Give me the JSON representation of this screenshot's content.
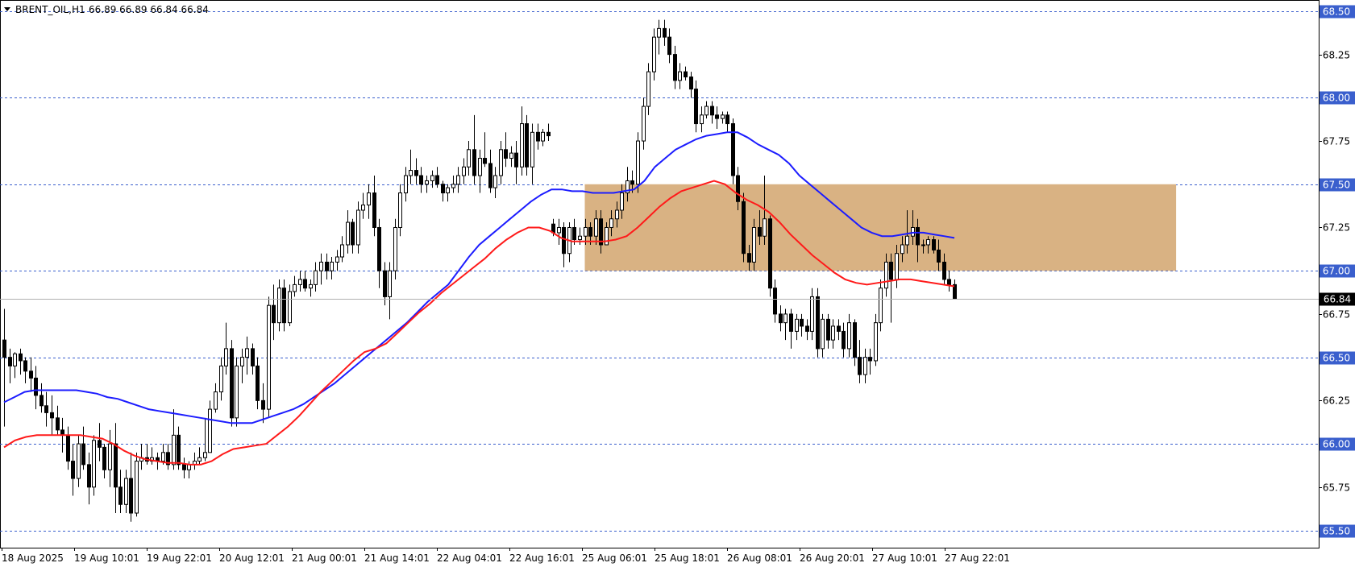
{
  "header": {
    "symbol": "BRENT_OIL,H1",
    "ohlc": "66.89 66.89 66.84 66.84"
  },
  "current_price": "66.84",
  "colors": {
    "candle": "#000000",
    "grid": "#3a5fcd",
    "zone_fill": "#d9b283",
    "ma_blue": "#1c1cff",
    "ma_red": "#ff1a1a",
    "price_label_bg": "#000000"
  },
  "chart_data": {
    "type": "candlestick",
    "ylim": [
      65.4,
      68.56
    ],
    "grid": "horizontal-dashed",
    "y_ticks": [
      "68.50",
      "68.25",
      "68.00",
      "67.75",
      "67.50",
      "67.25",
      "67.00",
      "66.75",
      "66.50",
      "66.25",
      "66.00",
      "65.75",
      "65.50"
    ],
    "x_ticks": [
      "18 Aug 2025",
      "19 Aug 10:01",
      "19 Aug 22:01",
      "20 Aug 12:01",
      "21 Aug 00:01",
      "21 Aug 14:01",
      "22 Aug 04:01",
      "22 Aug 16:01",
      "25 Aug 06:01",
      "25 Aug 18:01",
      "26 Aug 08:01",
      "26 Aug 20:01",
      "27 Aug 10:01",
      "27 Aug 22:01"
    ],
    "zone": {
      "y_low": 67.0,
      "y_high": 67.5,
      "x_start_index": 110,
      "x_end_index": 222
    },
    "candles": [
      [
        66.6,
        66.78,
        66.1,
        66.5
      ],
      [
        66.5,
        66.55,
        66.35,
        66.45
      ],
      [
        66.45,
        66.53,
        66.38,
        66.52
      ],
      [
        66.52,
        66.55,
        66.4,
        66.48
      ],
      [
        66.48,
        66.5,
        66.35,
        66.42
      ],
      [
        66.42,
        66.5,
        66.3,
        66.38
      ],
      [
        66.38,
        66.45,
        66.2,
        66.28
      ],
      [
        66.28,
        66.35,
        66.18,
        66.22
      ],
      [
        66.22,
        66.3,
        66.1,
        66.18
      ],
      [
        66.18,
        66.28,
        66.05,
        66.15
      ],
      [
        66.15,
        66.22,
        66.05,
        66.08
      ],
      [
        66.08,
        66.15,
        65.95,
        66.05
      ],
      [
        66.05,
        66.1,
        65.85,
        65.9
      ],
      [
        65.9,
        66.0,
        65.7,
        65.8
      ],
      [
        65.8,
        66.05,
        65.75,
        66.0
      ],
      [
        66.0,
        66.1,
        65.85,
        65.88
      ],
      [
        65.88,
        65.95,
        65.65,
        65.75
      ],
      [
        65.75,
        66.05,
        65.7,
        66.02
      ],
      [
        66.02,
        66.12,
        65.9,
        65.98
      ],
      [
        65.98,
        66.0,
        65.8,
        65.85
      ],
      [
        65.85,
        66.08,
        65.75,
        66.0
      ],
      [
        66.0,
        66.12,
        65.6,
        65.75
      ],
      [
        65.75,
        65.85,
        65.6,
        65.65
      ],
      [
        65.65,
        65.85,
        65.6,
        65.8
      ],
      [
        65.8,
        65.95,
        65.55,
        65.6
      ],
      [
        65.6,
        65.95,
        65.58,
        65.9
      ],
      [
        65.9,
        66.0,
        65.85,
        65.92
      ],
      [
        65.92,
        66.0,
        65.88,
        65.9
      ],
      [
        65.9,
        65.98,
        65.88,
        65.92
      ],
      [
        65.92,
        65.95,
        65.85,
        65.9
      ],
      [
        65.9,
        66.0,
        65.88,
        65.95
      ],
      [
        65.95,
        66.0,
        65.85,
        65.88
      ],
      [
        65.88,
        66.2,
        65.85,
        66.05
      ],
      [
        66.05,
        66.1,
        65.85,
        65.88
      ],
      [
        65.88,
        65.92,
        65.8,
        65.85
      ],
      [
        65.85,
        65.9,
        65.8,
        65.88
      ],
      [
        65.88,
        65.95,
        65.85,
        65.9
      ],
      [
        65.9,
        65.98,
        65.88,
        65.92
      ],
      [
        65.92,
        66.15,
        65.9,
        65.95
      ],
      [
        65.95,
        66.25,
        65.95,
        66.2
      ],
      [
        66.2,
        66.35,
        66.18,
        66.3
      ],
      [
        66.3,
        66.5,
        66.25,
        66.45
      ],
      [
        66.45,
        66.7,
        66.4,
        66.55
      ],
      [
        66.55,
        66.6,
        66.1,
        66.15
      ],
      [
        66.15,
        66.5,
        66.1,
        66.45
      ],
      [
        66.45,
        66.55,
        66.35,
        66.5
      ],
      [
        66.5,
        66.62,
        66.4,
        66.55
      ],
      [
        66.55,
        66.58,
        66.4,
        66.45
      ],
      [
        66.45,
        66.5,
        66.2,
        66.25
      ],
      [
        66.25,
        66.35,
        66.12,
        66.2
      ],
      [
        66.2,
        66.85,
        66.15,
        66.8
      ],
      [
        66.8,
        66.92,
        66.6,
        66.7
      ],
      [
        66.7,
        66.95,
        66.65,
        66.9
      ],
      [
        66.9,
        66.95,
        66.65,
        66.7
      ],
      [
        66.7,
        66.92,
        66.68,
        66.88
      ],
      [
        66.88,
        66.97,
        66.85,
        66.92
      ],
      [
        66.92,
        67.0,
        66.88,
        66.95
      ],
      [
        66.95,
        67.0,
        66.88,
        66.9
      ],
      [
        66.9,
        66.95,
        66.85,
        66.92
      ],
      [
        66.92,
        67.05,
        66.88,
        67.0
      ],
      [
        67.0,
        67.1,
        66.92,
        67.05
      ],
      [
        67.05,
        67.1,
        66.95,
        67.0
      ],
      [
        67.0,
        67.08,
        66.95,
        67.05
      ],
      [
        67.05,
        67.12,
        67.0,
        67.08
      ],
      [
        67.08,
        67.2,
        67.05,
        67.15
      ],
      [
        67.15,
        67.35,
        67.1,
        67.28
      ],
      [
        67.28,
        67.3,
        67.1,
        67.15
      ],
      [
        67.15,
        67.4,
        67.1,
        67.35
      ],
      [
        67.35,
        67.45,
        67.3,
        67.38
      ],
      [
        67.38,
        67.5,
        67.3,
        67.45
      ],
      [
        67.45,
        67.55,
        67.2,
        67.25
      ],
      [
        67.25,
        67.3,
        66.9,
        67.0
      ],
      [
        67.0,
        67.05,
        66.8,
        66.85
      ],
      [
        66.85,
        67.05,
        66.72,
        67.0
      ],
      [
        67.0,
        67.3,
        66.95,
        67.25
      ],
      [
        67.25,
        67.5,
        67.2,
        67.45
      ],
      [
        67.45,
        67.6,
        67.4,
        67.55
      ],
      [
        67.55,
        67.7,
        67.5,
        67.58
      ],
      [
        67.58,
        67.65,
        67.5,
        67.55
      ],
      [
        67.55,
        67.6,
        67.45,
        67.5
      ],
      [
        67.5,
        67.55,
        67.45,
        67.52
      ],
      [
        67.52,
        67.58,
        67.48,
        67.55
      ],
      [
        67.55,
        67.6,
        67.48,
        67.5
      ],
      [
        67.5,
        67.52,
        67.4,
        67.45
      ],
      [
        67.45,
        67.5,
        67.4,
        67.48
      ],
      [
        67.48,
        67.55,
        67.45,
        67.5
      ],
      [
        67.5,
        67.6,
        67.45,
        67.55
      ],
      [
        67.55,
        67.65,
        67.5,
        67.6
      ],
      [
        67.6,
        67.75,
        67.55,
        67.7
      ],
      [
        67.7,
        67.9,
        67.5,
        67.55
      ],
      [
        67.55,
        67.7,
        67.45,
        67.65
      ],
      [
        67.65,
        67.8,
        67.6,
        67.62
      ],
      [
        67.62,
        67.7,
        67.45,
        67.48
      ],
      [
        67.48,
        67.6,
        67.42,
        67.55
      ],
      [
        67.55,
        67.75,
        67.5,
        67.7
      ],
      [
        67.7,
        67.8,
        67.6,
        67.65
      ],
      [
        67.65,
        67.72,
        67.6,
        67.68
      ],
      [
        67.68,
        67.75,
        67.5,
        67.6
      ],
      [
        67.6,
        67.95,
        67.55,
        67.85
      ],
      [
        67.85,
        67.9,
        67.55,
        67.6
      ],
      [
        67.6,
        67.85,
        67.5,
        67.8
      ],
      [
        67.8,
        67.85,
        67.7,
        67.75
      ],
      [
        67.75,
        67.82,
        67.72,
        67.8
      ],
      [
        67.8,
        67.85,
        67.75,
        67.78
      ],
      [
        67.27,
        67.3,
        67.2,
        67.22
      ],
      [
        67.22,
        67.3,
        67.15,
        67.25
      ],
      [
        67.25,
        67.28,
        67.02,
        67.1
      ],
      [
        67.1,
        67.28,
        67.05,
        67.25
      ],
      [
        67.25,
        67.3,
        67.15,
        67.18
      ],
      [
        67.18,
        67.25,
        67.15,
        67.2
      ],
      [
        67.2,
        67.3,
        67.15,
        67.25
      ],
      [
        67.25,
        67.28,
        67.15,
        67.2
      ],
      [
        67.2,
        67.35,
        67.15,
        67.3
      ],
      [
        67.3,
        67.35,
        67.1,
        67.15
      ],
      [
        67.15,
        67.28,
        67.15,
        67.25
      ],
      [
        67.25,
        67.35,
        67.2,
        67.3
      ],
      [
        67.3,
        67.4,
        67.25,
        67.35
      ],
      [
        67.35,
        67.5,
        67.3,
        67.45
      ],
      [
        67.45,
        67.6,
        67.4,
        67.52
      ],
      [
        67.52,
        67.58,
        67.45,
        67.5
      ],
      [
        67.5,
        67.8,
        67.45,
        67.75
      ],
      [
        67.75,
        68.0,
        67.7,
        67.95
      ],
      [
        67.95,
        68.2,
        67.9,
        68.15
      ],
      [
        68.15,
        68.4,
        68.1,
        68.35
      ],
      [
        68.35,
        68.45,
        68.25,
        68.4
      ],
      [
        68.4,
        68.45,
        68.3,
        68.35
      ],
      [
        68.35,
        68.4,
        68.2,
        68.25
      ],
      [
        68.25,
        68.3,
        68.05,
        68.1
      ],
      [
        68.1,
        68.2,
        68.05,
        68.15
      ],
      [
        68.15,
        68.18,
        68.1,
        68.12
      ],
      [
        68.12,
        68.15,
        68.0,
        68.05
      ],
      [
        68.05,
        68.1,
        67.8,
        67.85
      ],
      [
        67.85,
        67.95,
        67.8,
        67.9
      ],
      [
        67.9,
        67.98,
        67.88,
        67.95
      ],
      [
        67.95,
        67.98,
        67.85,
        67.9
      ],
      [
        67.9,
        67.95,
        67.82,
        67.88
      ],
      [
        67.88,
        67.92,
        67.85,
        67.9
      ],
      [
        67.9,
        67.92,
        67.8,
        67.85
      ],
      [
        67.85,
        67.88,
        67.5,
        67.55
      ],
      [
        67.55,
        67.6,
        67.35,
        67.4
      ],
      [
        67.4,
        67.45,
        67.05,
        67.1
      ],
      [
        67.1,
        67.15,
        67.0,
        67.05
      ],
      [
        67.05,
        67.3,
        67.0,
        67.25
      ],
      [
        67.25,
        67.35,
        67.15,
        67.2
      ],
      [
        67.2,
        67.55,
        67.15,
        67.3
      ],
      [
        67.3,
        67.32,
        66.85,
        66.9
      ],
      [
        66.9,
        66.95,
        66.7,
        66.75
      ],
      [
        66.75,
        66.8,
        66.65,
        66.7
      ],
      [
        66.7,
        66.78,
        66.6,
        66.75
      ],
      [
        66.75,
        66.78,
        66.55,
        66.65
      ],
      [
        66.65,
        66.75,
        66.6,
        66.72
      ],
      [
        66.72,
        66.75,
        66.62,
        66.68
      ],
      [
        66.68,
        66.72,
        66.6,
        66.65
      ],
      [
        66.65,
        66.9,
        66.6,
        66.85
      ],
      [
        66.85,
        66.9,
        66.5,
        66.55
      ],
      [
        66.55,
        66.75,
        66.5,
        66.72
      ],
      [
        66.72,
        66.75,
        66.55,
        66.6
      ],
      [
        66.6,
        66.72,
        66.55,
        66.68
      ],
      [
        66.68,
        66.72,
        66.6,
        66.65
      ],
      [
        66.65,
        66.7,
        66.5,
        66.55
      ],
      [
        66.55,
        66.75,
        66.5,
        66.7
      ],
      [
        66.7,
        66.72,
        66.45,
        66.5
      ],
      [
        66.5,
        66.6,
        66.35,
        66.4
      ],
      [
        66.4,
        66.55,
        66.35,
        66.5
      ],
      [
        66.5,
        66.55,
        66.4,
        66.48
      ],
      [
        66.48,
        66.75,
        66.45,
        66.7
      ],
      [
        66.7,
        66.95,
        66.65,
        66.9
      ],
      [
        66.9,
        67.1,
        66.85,
        67.05
      ],
      [
        67.05,
        67.1,
        66.7,
        66.95
      ],
      [
        66.95,
        67.15,
        66.9,
        67.1
      ],
      [
        67.1,
        67.2,
        67.05,
        67.15
      ],
      [
        67.15,
        67.35,
        67.1,
        67.2
      ],
      [
        67.2,
        67.35,
        67.15,
        67.25
      ],
      [
        67.25,
        67.3,
        67.05,
        67.15
      ],
      [
        67.15,
        67.18,
        67.1,
        67.15
      ],
      [
        67.15,
        67.2,
        67.1,
        67.18
      ],
      [
        67.18,
        67.2,
        67.1,
        67.12
      ],
      [
        67.12,
        67.18,
        67.0,
        67.05
      ],
      [
        67.05,
        67.1,
        66.92,
        66.95
      ],
      [
        66.95,
        67.0,
        66.88,
        66.92
      ],
      [
        66.92,
        66.95,
        66.84,
        66.84
      ]
    ],
    "series": [
      {
        "values": [
          66.24,
          66.27,
          66.3,
          66.31,
          66.31,
          66.31,
          66.31,
          66.31,
          66.3,
          66.29,
          66.27,
          66.26,
          66.24,
          66.22,
          66.2,
          66.19,
          66.18,
          66.17,
          66.16,
          66.15,
          66.14,
          66.13,
          66.12,
          66.12,
          66.12,
          66.14,
          66.16,
          66.18,
          66.2,
          66.23,
          66.27,
          66.31,
          66.35,
          66.4,
          66.45,
          66.5,
          66.55,
          66.6,
          66.65,
          66.7,
          66.76,
          66.82,
          66.87,
          66.92,
          67.0,
          67.08,
          67.15,
          67.2,
          67.25,
          67.3,
          67.35,
          67.4,
          67.44,
          67.47,
          67.47,
          67.46,
          67.46,
          67.45,
          67.45,
          67.45,
          67.46,
          67.47,
          67.52,
          67.6,
          67.65,
          67.7,
          67.73,
          67.76,
          67.78,
          67.79,
          67.8,
          67.8,
          67.77,
          67.73,
          67.7,
          67.67,
          67.62,
          67.55,
          67.5,
          67.45,
          67.4,
          67.35,
          67.3,
          67.25,
          67.22,
          67.2,
          67.2,
          67.21,
          67.22,
          67.22,
          67.21,
          67.2,
          67.19
        ]
      },
      {
        "values": [
          65.98,
          66.02,
          66.04,
          66.05,
          66.05,
          66.05,
          66.05,
          66.05,
          66.04,
          66.03,
          66.0,
          65.96,
          65.93,
          65.91,
          65.9,
          65.89,
          65.89,
          65.88,
          65.88,
          65.9,
          65.94,
          65.97,
          65.98,
          65.99,
          66.0,
          66.05,
          66.1,
          66.16,
          66.23,
          66.3,
          66.36,
          66.42,
          66.48,
          66.53,
          66.55,
          66.58,
          66.64,
          66.7,
          66.76,
          66.81,
          66.87,
          66.92,
          66.97,
          67.02,
          67.07,
          67.13,
          67.18,
          67.22,
          67.25,
          67.25,
          67.23,
          67.19,
          67.17,
          67.17,
          67.17,
          67.17,
          67.18,
          67.2,
          67.25,
          67.31,
          67.37,
          67.42,
          67.46,
          67.48,
          67.5,
          67.52,
          67.5,
          67.45,
          67.41,
          67.38,
          67.34,
          67.28,
          67.21,
          67.15,
          67.09,
          67.04,
          66.99,
          66.95,
          66.93,
          66.92,
          66.93,
          66.94,
          66.95,
          66.95,
          66.94,
          66.93,
          66.92,
          66.91
        ]
      }
    ],
    "last_price": 66.84
  }
}
